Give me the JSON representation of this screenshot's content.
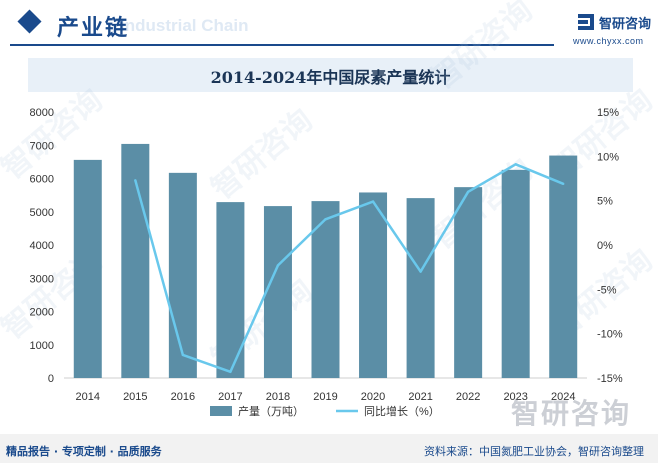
{
  "header": {
    "section_title": "产业链",
    "ghost_title": "Industrial Chain",
    "logo_text": "智研咨询",
    "logo_url": "www.chyxx.com",
    "accent_color": "#1a4a8c"
  },
  "footer": {
    "left_text": "精品报告 · 专项定制 · 品质服务",
    "right_text": "资料来源：中国氮肥工业协会，智研咨询整理"
  },
  "watermark": {
    "text": "智研咨询"
  },
  "chart_data": {
    "type": "bar",
    "title": "2014-2024年中国尿素产量统计",
    "categories": [
      "2014",
      "2015",
      "2016",
      "2017",
      "2018",
      "2019",
      "2020",
      "2021",
      "2022",
      "2023",
      "2024"
    ],
    "series": [
      {
        "name": "产量（万吨）",
        "type": "bar",
        "axis": "left",
        "color": "#5b8ea6",
        "values": [
          6560,
          7040,
          6170,
          5290,
          5170,
          5320,
          5580,
          5410,
          5740,
          6260,
          6690
        ]
      },
      {
        "name": "同比增长（%）",
        "type": "line",
        "axis": "right",
        "color": "#69c8ec",
        "values": [
          null,
          7.3,
          -12.4,
          -14.3,
          -2.3,
          2.9,
          4.9,
          -3.0,
          6.0,
          9.1,
          6.9
        ]
      }
    ],
    "y_left": {
      "min": 0,
      "max": 8000,
      "ticks": [
        0,
        1000,
        2000,
        3000,
        4000,
        5000,
        6000,
        7000,
        8000
      ]
    },
    "y_right": {
      "min": -15,
      "max": 15,
      "ticks": [
        -15,
        -10,
        -5,
        0,
        5,
        10,
        15
      ],
      "tick_labels": [
        "-15%",
        "-10%",
        "-5%",
        "0%",
        "5%",
        "10%",
        "15%"
      ]
    },
    "grid": false,
    "legend_position": "bottom"
  }
}
